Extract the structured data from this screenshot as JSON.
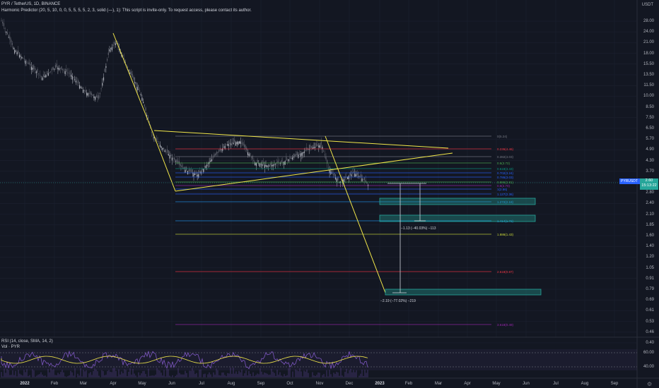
{
  "header": {
    "symbol_line": "PYR / TetherUS, 1D, BINANCE",
    "indicator_line": "Harmonic Predictor (20, 5, 10, 0, 0, 5, 5, 5, 5, 2, 3, solid (—), 1): This script is invite-only. To request access, please contact its author."
  },
  "price_axis": {
    "currency": "USDT",
    "labels": [
      "28.00",
      "24.00",
      "21.00",
      "18.00",
      "15.50",
      "13.50",
      "11.50",
      "10.00",
      "8.50",
      "7.50",
      "6.50",
      "5.70",
      "4.90",
      "4.30",
      "3.70",
      "3.20",
      "2.80",
      "2.40",
      "2.10",
      "1.85",
      "1.60",
      "1.40",
      "1.20",
      "1.05",
      "0.91",
      "0.79",
      "0.69",
      "0.61",
      "0.53",
      "0.46",
      "0.40"
    ]
  },
  "current_price": {
    "symbol": "PYRUSDT",
    "value": "2.60",
    "countdown": "15:13:22"
  },
  "time_axis": {
    "labels": [
      "2022",
      "Feb",
      "Mar",
      "Apr",
      "May",
      "Jun",
      "Jul",
      "Aug",
      "Sep",
      "Oct",
      "Nov",
      "Dec",
      "2023",
      "Feb",
      "Mar",
      "Apr",
      "May",
      "Jun",
      "Jul",
      "Aug",
      "Sep"
    ]
  },
  "fib_levels": [
    "0(5.24)",
    "0.236(4.46)",
    "0.382(4.03)",
    "0.5(3.72)",
    "0.618(3.43)",
    "0.702(3.24)",
    "0.786(3.03)",
    "0.886(2.81)",
    "0.5(2.70)",
    "1(2.56)",
    "1.127(2.36)",
    "1.272(2.18)",
    "1.414(1.72)",
    "1.886(1.43)",
    "2.618(0.87)",
    "3.618(0.49)"
  ],
  "measurements": {
    "small": "−1.13 (−40.03%) −113",
    "large": "−2.19 (−77.02%) −219"
  },
  "rsi": {
    "label": "RSI (14, close, SMA, 14, 2)",
    "vol_label": "Vol · PYR",
    "levels": [
      "60.00",
      "40.00"
    ]
  },
  "colors": {
    "background": "#131722",
    "candles": "#b2b5be",
    "pattern": "#f2e74a",
    "target_box": "#26a69a",
    "rsi": "#7e57c2",
    "rsi_ma": "#f2e74a"
  }
}
